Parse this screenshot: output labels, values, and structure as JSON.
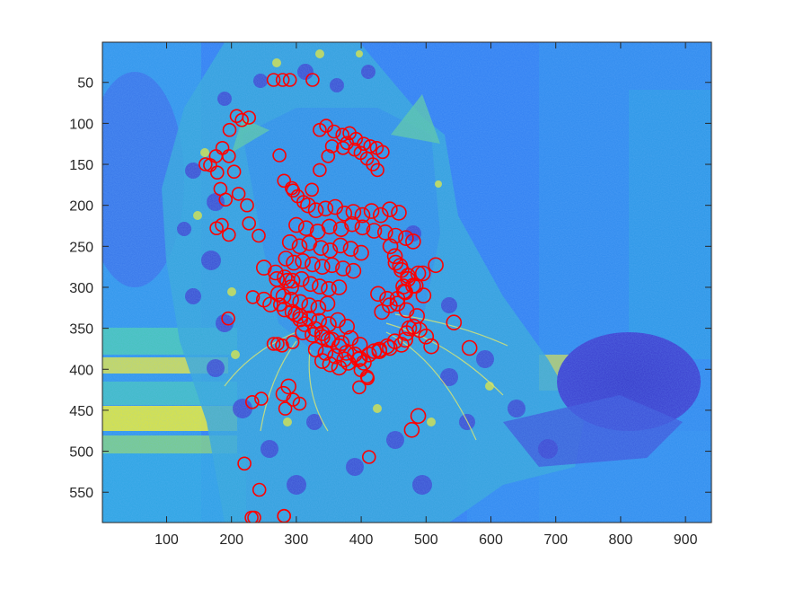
{
  "chart_data": {
    "type": "scatter",
    "background": "image",
    "background_description_colors": {
      "dark_blue": "#3a3ccf",
      "blue": "#2f7ef2",
      "cyan": "#1fb6d6",
      "green": "#5fd19a",
      "yellow": "#f6f122"
    },
    "marker": {
      "shape": "circle-open",
      "color": "#ff0000"
    },
    "xlim": [
      1,
      940
    ],
    "ylim": [
      1,
      587
    ],
    "y_reversed": true,
    "grid": false,
    "x_ticks": [
      100,
      200,
      300,
      400,
      500,
      600,
      700,
      800,
      900
    ],
    "y_ticks": [
      50,
      100,
      150,
      200,
      250,
      300,
      350,
      400,
      450,
      500,
      550
    ],
    "points": {
      "x": [
        265,
        279,
        290,
        325,
        208,
        216,
        227,
        197,
        186,
        176,
        167,
        160,
        196,
        204,
        178,
        183,
        211,
        224,
        191,
        227,
        185,
        177,
        196,
        242,
        195,
        274,
        281,
        293,
        295,
        302,
        311,
        324,
        336,
        349,
        355,
        372,
        378,
        390,
        399,
        409,
        418,
        425,
        336,
        346,
        358,
        371,
        382,
        392,
        404,
        414,
        424,
        433,
        318,
        330,
        345,
        360,
        374,
        388,
        402,
        416,
        430,
        444,
        458,
        300,
        315,
        333,
        351,
        369,
        386,
        402,
        420,
        437,
        453,
        469,
        480,
        290,
        305,
        320,
        338,
        352,
        368,
        384,
        400,
        284,
        296,
        310,
        325,
        340,
        355,
        372,
        388,
        282,
        294,
        308,
        322,
        336,
        350,
        366,
        280,
        292,
        306,
        320,
        334,
        348,
        294,
        306,
        320,
        335,
        350,
        364,
        378,
        310,
        325,
        340,
        355,
        370,
        384,
        398,
        330,
        345,
        360,
        374,
        390,
        404,
        420,
        340,
        352,
        366,
        380,
        396,
        412,
        428,
        440,
        452,
        250,
        268,
        270,
        286,
        292,
        272,
        250,
        260,
        282,
        299,
        306,
        313,
        329,
        340,
        349,
        366,
        377,
        398,
        428,
        444,
        462,
        468,
        470,
        474,
        481,
        490,
        500,
        508,
        445,
        452,
        460,
        472,
        484,
        496,
        432,
        444,
        456,
        468,
        480,
        453,
        462,
        488,
        472,
        465,
        466,
        426,
        440,
        456,
        470,
        486,
        495,
        515,
        543,
        567,
        488,
        478,
        280,
        288,
        295,
        305,
        283,
        271,
        265,
        278,
        294,
        397,
        399,
        409,
        410,
        412,
        220,
        231,
        235,
        281,
        281,
        243,
        246,
        232,
        233,
        275
      ],
      "y": [
        47,
        47,
        47,
        47,
        91,
        96,
        93,
        108,
        130,
        140,
        151,
        150,
        140,
        159,
        160,
        180,
        186,
        200,
        193,
        222,
        224,
        228,
        236,
        237,
        338,
        139,
        170,
        179,
        182,
        189,
        196,
        181,
        157,
        140,
        128,
        130,
        124,
        132,
        136,
        143,
        150,
        157,
        108,
        103,
        110,
        114,
        112,
        119,
        125,
        128,
        130,
        135,
        200,
        206,
        204,
        202,
        210,
        208,
        212,
        207,
        212,
        205,
        209,
        224,
        228,
        232,
        226,
        229,
        223,
        227,
        231,
        233,
        237,
        240,
        244,
        245,
        250,
        246,
        252,
        255,
        249,
        253,
        258,
        265,
        270,
        268,
        272,
        275,
        273,
        277,
        280,
        288,
        292,
        290,
        296,
        299,
        302,
        300,
        311,
        315,
        318,
        322,
        325,
        320,
        330,
        335,
        338,
        341,
        345,
        340,
        348,
        355,
        358,
        361,
        364,
        368,
        362,
        370,
        376,
        380,
        384,
        388,
        382,
        392,
        378,
        390,
        394,
        398,
        392,
        388,
        382,
        376,
        372,
        366,
        276,
        282,
        290,
        292,
        300,
        308,
        315,
        321,
        327,
        333,
        339,
        345,
        351,
        356,
        364,
        372,
        380,
        387,
        378,
        374,
        370,
        364,
        356,
        350,
        348,
        352,
        360,
        372,
        250,
        262,
        274,
        286,
        298,
        310,
        330,
        322,
        314,
        306,
        298,
        270,
        279,
        283,
        290,
        299,
        305,
        308,
        314,
        320,
        328,
        335,
        283,
        273,
        343,
        374,
        457,
        474,
        430,
        421,
        437,
        442,
        448,
        369,
        369,
        371,
        367,
        422,
        401,
        409,
        411,
        507,
        515,
        581,
        581,
        579,
        579,
        547,
        436,
        440,
        312,
        321
      ],
      "r": [
        7,
        7,
        7,
        7,
        7,
        7,
        7,
        7,
        7,
        7,
        7,
        7,
        7,
        7,
        7,
        7,
        7,
        7,
        7,
        7,
        7,
        7,
        7,
        7,
        7,
        7,
        7,
        7,
        7,
        7,
        7,
        7,
        7,
        7,
        7,
        7,
        7,
        7,
        7,
        7,
        7,
        7,
        7,
        7,
        7,
        7,
        7,
        7,
        7,
        7,
        7,
        7,
        8,
        8,
        8,
        8,
        8,
        8,
        8,
        8,
        8,
        8,
        8,
        8,
        8,
        8,
        8,
        8,
        8,
        8,
        8,
        8,
        8,
        8,
        8,
        8,
        8,
        8,
        8,
        8,
        8,
        8,
        8,
        8,
        8,
        8,
        8,
        8,
        8,
        8,
        8,
        8,
        8,
        8,
        8,
        8,
        8,
        8,
        8,
        8,
        8,
        8,
        8,
        8,
        8,
        8,
        8,
        8,
        8,
        8,
        8,
        8,
        8,
        8,
        8,
        8,
        8,
        8,
        8,
        8,
        8,
        8,
        8,
        8,
        8,
        8,
        8,
        8,
        8,
        8,
        8,
        8,
        8,
        8,
        8,
        8,
        8,
        8,
        8,
        8,
        8,
        8,
        8,
        8,
        8,
        8,
        8,
        8,
        8,
        8,
        8,
        8,
        8,
        8,
        8,
        8,
        8,
        8,
        8,
        8,
        8,
        8,
        8,
        8,
        8,
        8,
        8,
        8,
        8,
        8,
        8,
        8,
        8,
        8,
        8,
        8,
        8,
        8,
        8,
        8,
        8,
        8,
        8,
        8,
        8,
        8,
        8,
        8,
        8,
        8,
        8,
        8,
        7,
        7,
        7,
        7,
        7,
        7,
        7,
        7,
        7,
        7,
        7,
        7,
        7,
        7,
        7,
        7,
        7,
        7,
        7,
        7,
        7,
        7,
        7,
        7,
        7,
        7
      ]
    }
  }
}
